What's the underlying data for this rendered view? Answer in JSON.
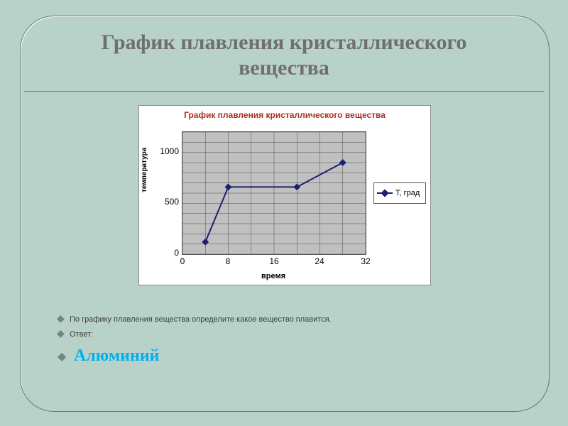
{
  "slide": {
    "background_color": "#b9d2c9",
    "title_line1": "График плавления кристаллического",
    "title_line2": "вещества",
    "title_color": "#6f6f6f",
    "title_fontsize": 30
  },
  "chart": {
    "type": "line",
    "title": "График плавления кристаллического вещества",
    "title_color": "#ab2f1e",
    "title_fontsize": 12,
    "plot_bgcolor": "#c0c0c0",
    "grid_color": "#000000",
    "series_color": "#1c2075",
    "marker_style": "diamond",
    "marker_fill": "#1c2075",
    "marker_size": 7,
    "line_width": 2,
    "xlabel": "время",
    "ylabel": "температура",
    "label_fontsize": 11,
    "xlim": [
      0,
      32
    ],
    "ylim": [
      0,
      1200
    ],
    "xtick_step": 8,
    "xtick_minor": 4,
    "yticks": [
      0,
      500,
      1000
    ],
    "ytick_minor_count": 12,
    "points": [
      {
        "x": 4,
        "y": 120
      },
      {
        "x": 8,
        "y": 660
      },
      {
        "x": 20,
        "y": 660
      },
      {
        "x": 28,
        "y": 900
      }
    ],
    "xticks_labels": [
      "0",
      "8",
      "16",
      "24",
      "32"
    ],
    "yticks_labels": [
      "0",
      "500",
      "1000"
    ],
    "legend": {
      "position": "right",
      "label": "Т, град"
    }
  },
  "bullets": {
    "q1": "По графику плавления вещества определите какое вещество плавится.",
    "q2": "Ответ:",
    "answer": "Алюминий",
    "bullet_mark_color": "#6b8a7e",
    "answer_color": "#00b0f0"
  }
}
